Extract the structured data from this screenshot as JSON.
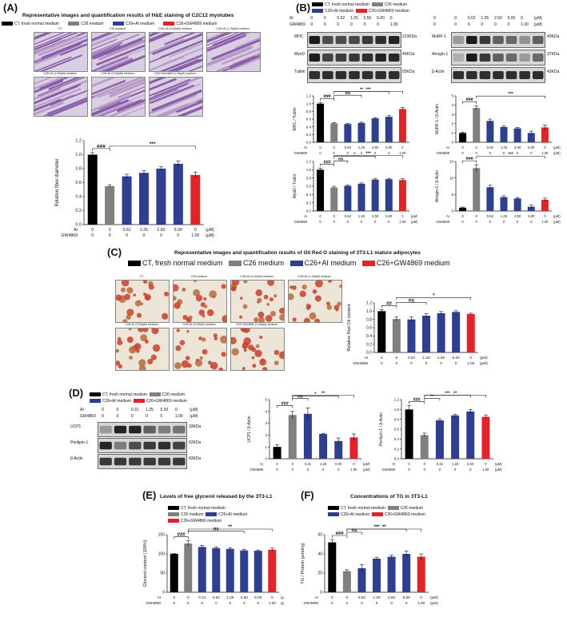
{
  "colors": {
    "ct": "#000000",
    "c26": "#808080",
    "ai": "#2e3f8f",
    "gw": "#e0252a"
  },
  "legend_long": [
    "CT, fresh normal medium",
    "C26 medium",
    "C26+AI medium",
    "C26+GW4869 medium"
  ],
  "panels": {
    "A": {
      "letter": "(A)",
      "title": "Representative images and quantification results of H&E staining of C2C12 myotubes",
      "img_row1": [
        "CT",
        "C26 medium",
        "C26+AI (0.62μM) medium",
        "C26+AI (1.25μM) medium"
      ],
      "img_row2": [
        "C26+AI (2.50μM) medium",
        "C26+AI (5.00μM) medium",
        "C26+GW4869 (1.00μM) medium"
      ]
    },
    "B": {
      "letter": "(B)",
      "ai_row": [
        "AI",
        "0",
        "0",
        "0.62",
        "1.25",
        "2.50",
        "5.00",
        "0",
        "(μM)"
      ],
      "gw_row": [
        "GW4869",
        "0",
        "0",
        "0",
        "0",
        "0",
        "0",
        "1.00",
        "(μM)"
      ],
      "bands_left": [
        "MHC",
        "MyoD",
        "Tublin"
      ],
      "kda_left": [
        "223KDa",
        "45KDa",
        "55KDa"
      ],
      "bands_right": [
        "MuRF-1",
        "Atrogin-1",
        "β-Actin"
      ],
      "kda_right": [
        "40KDa",
        "37KDa",
        "43KDa"
      ]
    },
    "C": {
      "letter": "(C)",
      "title": "Representative images and quantification results of Oil Red O staining of 3T3-L1 mature adipocytes",
      "img_row1": [
        "CT",
        "C26 medium",
        "C26+AI (0.62μM) medium",
        "C26+AI (1.25μM) medium"
      ],
      "img_row2": [
        "C26+AI (2.50μM) medium",
        "C26+AI (5.00μM) medium",
        "C26+GW4869 (1.00μM) medium"
      ]
    },
    "D": {
      "letter": "(D)",
      "ai_row": [
        "AI",
        "0",
        "0",
        "0.31",
        "1.25",
        "5.00",
        "0",
        "(μM)"
      ],
      "gw_row": [
        "GW4869",
        "0",
        "0",
        "0",
        "0",
        "0",
        "1.00",
        "(μM)"
      ],
      "bands": [
        "UCP1",
        "Perilipin-1",
        "β-Actin"
      ],
      "kda": [
        "33KDa",
        "62KDa",
        "43KDa"
      ]
    },
    "E": {
      "letter": "(E)",
      "title": "Levels of free glycerol released by the 3T3-L1"
    },
    "F": {
      "letter": "(F)",
      "title": "Concentrations of TG in 3T3-L1"
    }
  },
  "chart_data": [
    {
      "id": "A",
      "type": "bar",
      "ylabel": "Relative fiber diameter",
      "ylim": [
        0,
        1.2
      ],
      "yticks": [
        "0.0",
        "0.2",
        "0.4",
        "0.6",
        "0.8",
        "1.0",
        "1.2"
      ],
      "ai": [
        "0",
        "0",
        "0.62",
        "1.25",
        "2.50",
        "5.00",
        "0",
        "(μM)"
      ],
      "gw": [
        "0",
        "0",
        "0",
        "0",
        "0",
        "0",
        "1.00",
        "(μM)"
      ],
      "values": [
        1.0,
        0.55,
        0.69,
        0.74,
        0.8,
        0.87,
        0.71
      ],
      "errors": [
        0.03,
        0.02,
        0.03,
        0.03,
        0.03,
        0.04,
        0.04
      ],
      "annotations": [
        "###",
        "***"
      ]
    },
    {
      "id": "B1",
      "type": "bar",
      "ylabel": "MHC / Tublin",
      "ylim": [
        0,
        1.2
      ],
      "yticks": [
        "0.0",
        "0.2",
        "0.4",
        "0.6",
        "0.8",
        "1.0",
        "1.2"
      ],
      "ai": [
        "0",
        "0",
        "0.62",
        "1.25",
        "2.50",
        "5.00",
        "0"
      ],
      "gw": [
        "0",
        "0",
        "0",
        "0",
        "0",
        "0",
        "1.00"
      ],
      "values": [
        1.0,
        0.49,
        0.47,
        0.5,
        0.62,
        0.66,
        0.86
      ],
      "errors": [
        0.03,
        0.02,
        0.02,
        0.02,
        0.02,
        0.03,
        0.04
      ],
      "annotations": [
        "###",
        "ns",
        "**",
        "***"
      ]
    },
    {
      "id": "B2",
      "type": "bar",
      "ylabel": "MyoD / Tublin",
      "ylim": [
        0,
        1.2
      ],
      "yticks": [
        "0.0",
        "0.2",
        "0.4",
        "0.6",
        "0.8",
        "1.0",
        "1.2"
      ],
      "ai": [
        "0",
        "0",
        "0.62",
        "1.25",
        "2.50",
        "5.00",
        "0",
        "(μM)"
      ],
      "gw": [
        "0",
        "0",
        "0",
        "0",
        "0",
        "0",
        "1.00",
        "(μM)"
      ],
      "values": [
        1.0,
        0.57,
        0.61,
        0.66,
        0.76,
        0.77,
        0.75
      ],
      "errors": [
        0.04,
        0.03,
        0.02,
        0.02,
        0.02,
        0.02,
        0.03
      ],
      "annotations": [
        "###",
        "ns",
        "*",
        "***"
      ]
    },
    {
      "id": "B3",
      "type": "bar",
      "ylabel": "MuRF-1 / β-Actin",
      "ylim": [
        0,
        5
      ],
      "yticks": [
        "0",
        "1",
        "2",
        "3",
        "4",
        "5"
      ],
      "ai": [
        "0",
        "0",
        "0.62",
        "1.25",
        "2.50",
        "5.00",
        "0",
        "(μM)"
      ],
      "gw": [
        "0",
        "0",
        "0",
        "0",
        "0",
        "0",
        "1.00",
        "(μM)"
      ],
      "values": [
        1.0,
        3.7,
        2.3,
        1.65,
        1.5,
        1.0,
        1.6
      ],
      "errors": [
        0.1,
        0.25,
        0.2,
        0.1,
        0.1,
        0.2,
        0.25
      ],
      "annotations": [
        "###",
        "***"
      ]
    },
    {
      "id": "B4",
      "type": "bar",
      "ylabel": "Atrogin-1 / β-Actin",
      "ylim": [
        0,
        15
      ],
      "yticks": [
        "0",
        "5",
        "10",
        "15"
      ],
      "ai": [
        "0",
        "0",
        "0.62",
        "1.25",
        "2.50",
        "5.00",
        "0",
        "(μM)"
      ],
      "gw": [
        "0",
        "0",
        "0",
        "0",
        "0",
        "0",
        "1.00",
        "(μM)"
      ],
      "values": [
        1.0,
        13.0,
        7.2,
        4.2,
        3.8,
        1.3,
        3.4
      ],
      "errors": [
        0.2,
        1.0,
        0.6,
        0.4,
        0.3,
        0.5,
        0.5
      ],
      "annotations": [
        "###",
        "***"
      ]
    },
    {
      "id": "C",
      "type": "bar",
      "ylabel": "Relative Red Oil content",
      "ylim": [
        0,
        1.2
      ],
      "yticks": [
        "0.0",
        "0.2",
        "0.4",
        "0.6",
        "0.8",
        "1.0",
        "1.2"
      ],
      "ai": [
        "0",
        "0",
        "0.62",
        "1.25",
        "2.50",
        "5.00",
        "0",
        "(μM)"
      ],
      "gw": [
        "0",
        "0",
        "0",
        "0",
        "0",
        "0",
        "1.00",
        "(μM)"
      ],
      "values": [
        1.0,
        0.81,
        0.8,
        0.89,
        0.95,
        0.98,
        0.93
      ],
      "errors": [
        0.04,
        0.05,
        0.06,
        0.05,
        0.04,
        0.03,
        0.02
      ],
      "annotations": [
        "##",
        "ns",
        "*"
      ]
    },
    {
      "id": "D1",
      "type": "bar",
      "ylabel": "UCP1 / β-Actin",
      "ylim": [
        0,
        5
      ],
      "yticks": [
        "0",
        "1",
        "2",
        "3",
        "4",
        "5"
      ],
      "ai": [
        "0",
        "0",
        "0.31",
        "1.25",
        "5.00",
        "0",
        "(μM)"
      ],
      "gw": [
        "0",
        "0",
        "0",
        "0",
        "0",
        "1.00",
        "(μM)"
      ],
      "values": [
        1.0,
        3.7,
        3.8,
        2.1,
        1.5,
        1.8
      ],
      "errors": [
        0.2,
        0.3,
        0.5,
        0.05,
        0.25,
        0.3
      ],
      "annotations": [
        "###",
        "ns",
        "*",
        "**"
      ]
    },
    {
      "id": "D2",
      "type": "bar",
      "ylabel": "Perilipin-1 / β-Actin",
      "ylim": [
        0,
        1.2
      ],
      "yticks": [
        "0.0",
        "0.2",
        "0.4",
        "0.6",
        "0.8",
        "1.0",
        "1.2"
      ],
      "ai": [
        "0",
        "0",
        "0.31",
        "1.25",
        "5.00",
        "0",
        "(μM)"
      ],
      "gw": [
        "0",
        "0",
        "0",
        "0",
        "0",
        "1.00",
        "(μM)"
      ],
      "values": [
        1.0,
        0.48,
        0.78,
        0.88,
        0.96,
        0.85
      ],
      "errors": [
        0.08,
        0.04,
        0.03,
        0.02,
        0.04,
        0.04
      ],
      "annotations": [
        "###",
        "**",
        "***",
        "**"
      ]
    },
    {
      "id": "E",
      "type": "bar",
      "ylabel": "Glycerol content (100%)",
      "ylim": [
        0,
        150
      ],
      "yticks": [
        "0",
        "50",
        "100",
        "150"
      ],
      "ai": [
        "0",
        "0",
        "0.31",
        "0.62",
        "1.25",
        "2.50",
        "5.00",
        "0",
        "(μM)"
      ],
      "gw": [
        "0",
        "0",
        "0",
        "0",
        "0",
        "0",
        "0",
        "1.00",
        "(μM)"
      ],
      "values": [
        100,
        127,
        118,
        115,
        113,
        109,
        108,
        111
      ],
      "errors": [
        1,
        7,
        4,
        3,
        3,
        3,
        2,
        4
      ],
      "annotations": [
        "###",
        "ns",
        "**"
      ]
    },
    {
      "id": "F",
      "type": "bar",
      "ylabel": "TG / Protein (μmol/g)",
      "ylim": [
        0,
        60
      ],
      "yticks": [
        "0",
        "20",
        "40",
        "60"
      ],
      "ai": [
        "0",
        "0",
        "0.62",
        "1.25",
        "2.50",
        "5.00",
        "0",
        "(μM)"
      ],
      "gw": [
        "0",
        "0",
        "0",
        "0",
        "0",
        "0",
        "1.00",
        "(μM)"
      ],
      "values": [
        52,
        22,
        25,
        35,
        37,
        40,
        37
      ],
      "errors": [
        3,
        1.5,
        4,
        1.5,
        1.5,
        3,
        3
      ],
      "annotations": [
        "###",
        "ns",
        "***",
        "**"
      ]
    }
  ]
}
